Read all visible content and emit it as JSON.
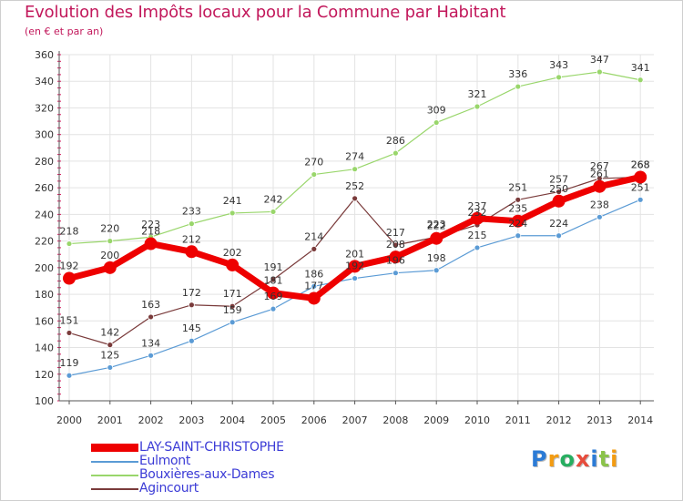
{
  "header": {
    "title": "Evolution des Impôts locaux pour la Commune par Habitant",
    "subtitle": "(en € et par an)"
  },
  "brand": {
    "letters": [
      "P",
      "r",
      "o",
      "x",
      "i",
      "t",
      "i"
    ],
    "colors": [
      "#2b7bd6",
      "#f39c12",
      "#27ae60",
      "#e74c3c",
      "#2b7bd6",
      "#8bc34a",
      "#f39c12"
    ]
  },
  "colors": {
    "grid": "#e3e3e3",
    "axis": "#555555",
    "minor_tick": "#d81b60"
  },
  "chart_data": {
    "type": "line",
    "title": "Evolution des Impôts locaux pour la Commune par Habitant",
    "subtitle": "(en € et par an)",
    "x": [
      "2000",
      "2001",
      "2002",
      "2003",
      "2004",
      "2005",
      "2006",
      "2007",
      "2008",
      "2009",
      "2010",
      "2011",
      "2012",
      "2013",
      "2014"
    ],
    "ylim": [
      100,
      360
    ],
    "yticks": [
      100,
      120,
      140,
      160,
      180,
      200,
      220,
      240,
      260,
      280,
      300,
      320,
      340,
      360
    ],
    "grid": true,
    "legend_position": "bottom-left",
    "series": [
      {
        "name": "LAY-SAINT-CHRISTOPHE",
        "color": "#ee0000",
        "width": 7,
        "marker": 7,
        "values": [
          192,
          200,
          218,
          212,
          202,
          181,
          177,
          201,
          208,
          222,
          237,
          235,
          250,
          261,
          268
        ],
        "labels": [
          "192",
          "200",
          "218",
          "212",
          "202",
          "181",
          "177",
          "201",
          "208",
          "222",
          "237",
          "235",
          "250",
          "261",
          "268"
        ]
      },
      {
        "name": "Eulmont",
        "color": "#5b9bd5",
        "width": 1.2,
        "marker": 3,
        "values": [
          119,
          125,
          134,
          145,
          159,
          169,
          186,
          192,
          196,
          198,
          215,
          224,
          224,
          238,
          251
        ],
        "labels": [
          "119",
          "125",
          "134",
          "145",
          "159",
          "169",
          "186",
          "192",
          "196",
          "198",
          "215",
          "224",
          "224",
          "238",
          "251"
        ]
      },
      {
        "name": "Bouxières-aux-Dames",
        "color": "#99d66b",
        "width": 1.2,
        "marker": 3,
        "values": [
          218,
          220,
          223,
          233,
          241,
          242,
          270,
          274,
          286,
          309,
          321,
          336,
          343,
          347,
          341
        ],
        "labels": [
          "218",
          "220",
          "223",
          "233",
          "241",
          "242",
          "270",
          "274",
          "286",
          "309",
          "321",
          "336",
          "343",
          "347",
          "341"
        ]
      },
      {
        "name": "Agincourt",
        "color": "#7a3b3b",
        "width": 1.2,
        "marker": 3,
        "values": [
          151,
          142,
          163,
          172,
          171,
          191,
          214,
          252,
          217,
          223,
          232,
          251,
          257,
          267,
          268
        ],
        "labels": [
          "151",
          "142",
          "163",
          "172",
          "171",
          "191",
          "214",
          "252",
          "217",
          "223",
          "232",
          "251",
          "257",
          "267",
          "268"
        ]
      }
    ]
  }
}
